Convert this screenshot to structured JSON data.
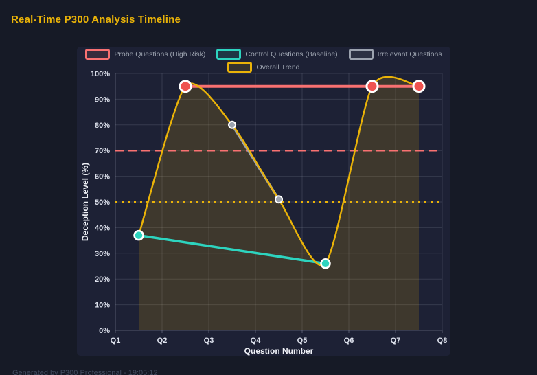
{
  "page": {
    "title": "Real-Time P300 Analysis Timeline",
    "footer": "Generated by P300 Professional - 19:05:12",
    "colors": {
      "background": "#161a26",
      "card": "#1d2135",
      "title": "#eab308",
      "grid": "rgba(186,192,214,0.16)",
      "axis": "rgba(186,192,214,0.34)",
      "tick_text": "#dfe3ee",
      "legend_text": "#9ca3af",
      "point_ring": "#ffffff"
    }
  },
  "chart_data": {
    "type": "line",
    "title": "Real-Time P300 Analysis Timeline",
    "xlabel": "Question Number",
    "ylabel": "Deception Level (%)",
    "x_ticks": [
      "Q1",
      "Q2",
      "Q3",
      "Q4",
      "Q5",
      "Q6",
      "Q7",
      "Q8"
    ],
    "xlim": [
      1,
      8
    ],
    "ylim": [
      0,
      100
    ],
    "y_tick_step": 10,
    "y_tick_suffix": "%",
    "grid": true,
    "legend_position": "top",
    "series": [
      {
        "name": "Probe Questions (High Risk)",
        "color": "#f87171",
        "point_color": "#ef5350",
        "x": [
          2.5,
          6.5,
          7.5
        ],
        "y": [
          95,
          95,
          95
        ],
        "line_width": 4,
        "point_radius": 8,
        "ring_width": 3,
        "smooth": false
      },
      {
        "name": "Control Questions (Baseline)",
        "color": "#2dd4bf",
        "point_color": "#2dd4bf",
        "x": [
          1.5,
          5.5
        ],
        "y": [
          37,
          26
        ],
        "line_width": 3.5,
        "point_radius": 6.5,
        "ring_width": 2.5,
        "smooth": false
      },
      {
        "name": "Irrelevant Questions",
        "color": "#9ca3af",
        "point_color": "#9ca3af",
        "x": [
          3.5,
          4.5
        ],
        "y": [
          80,
          51
        ],
        "line_width": 3.5,
        "point_radius": 5,
        "ring_width": 2,
        "smooth": false
      },
      {
        "name": "Overall Trend",
        "color": "#eab308",
        "point_color": "#eab308",
        "x": [
          1.5,
          2.5,
          3.5,
          4.5,
          5.5,
          6.5,
          7.5
        ],
        "y": [
          37,
          95,
          80,
          51,
          26,
          95,
          95
        ],
        "line_width": 2.5,
        "point_radius": 0,
        "ring_width": 0,
        "smooth": true,
        "fill": true,
        "fill_color": "rgba(234,179,8,0.16)"
      }
    ],
    "thresholds": [
      {
        "value": 70,
        "color": "#f87171",
        "style": "dashed"
      },
      {
        "value": 50,
        "color": "#eab308",
        "style": "dotted"
      }
    ]
  }
}
